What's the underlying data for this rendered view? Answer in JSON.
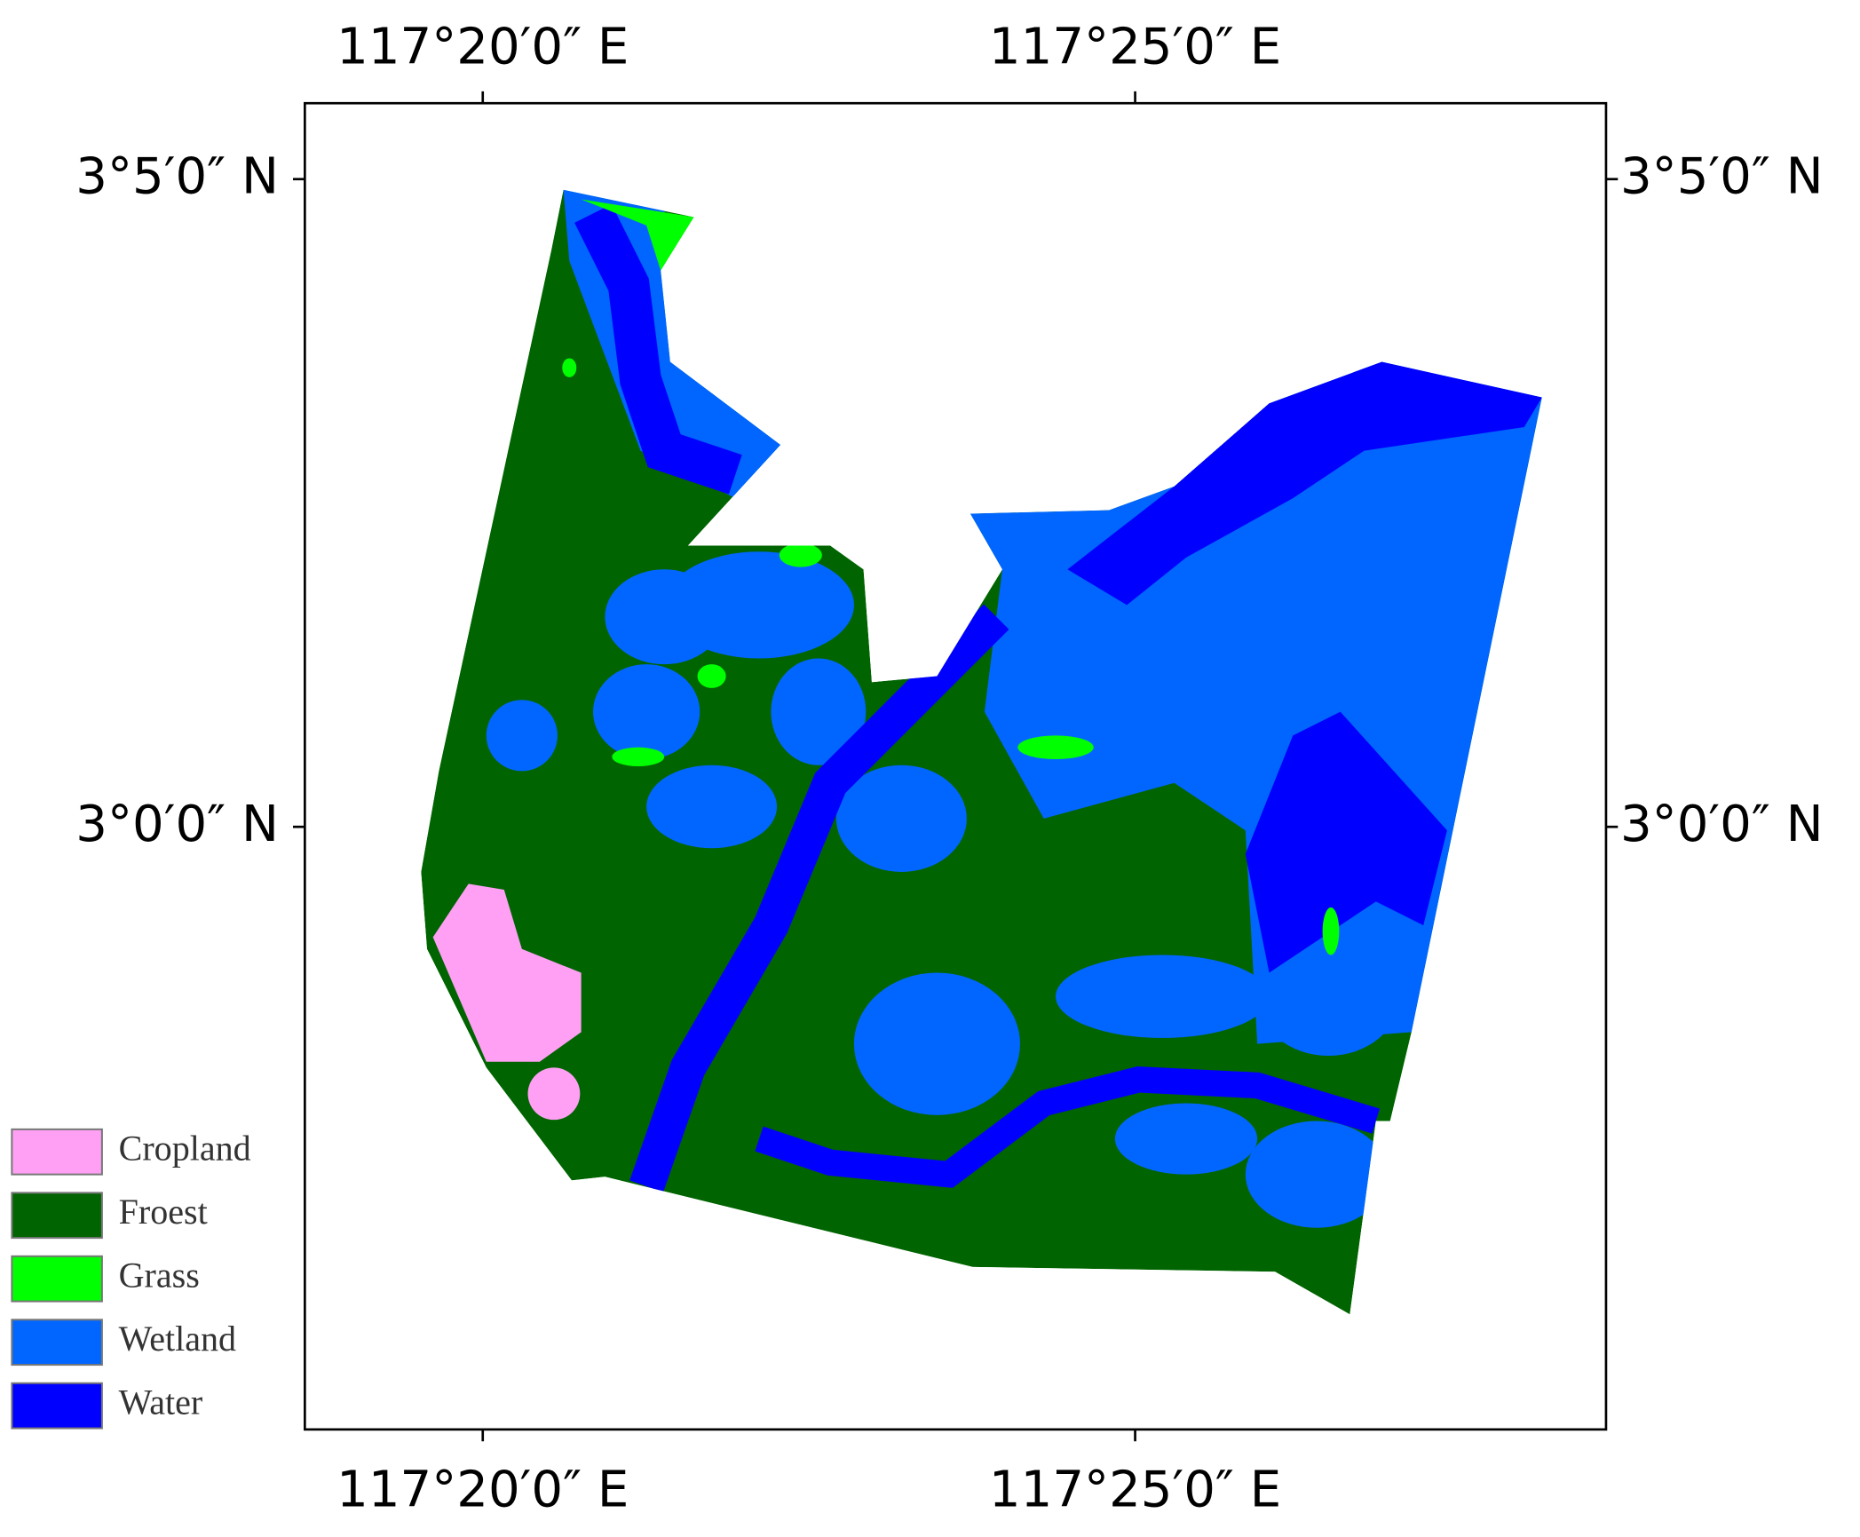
{
  "map": {
    "x_ticks_top": [
      "117°20′0″ E",
      "117°25′0″ E"
    ],
    "x_ticks_bottom": [
      "117°20′0″ E",
      "117°25′0″ E"
    ],
    "y_ticks_left": [
      "3°5′0″ N",
      "3°0′0″ N"
    ],
    "y_ticks_right": [
      "3°5′0″ N",
      "3°0′0″ N"
    ],
    "legend": [
      {
        "label": "Cropland",
        "color": "#ffa0f5"
      },
      {
        "label": "Froest",
        "color": "#006400"
      },
      {
        "label": "Grass",
        "color": "#00ff00"
      },
      {
        "label": "Wetland",
        "color": "#0066ff"
      },
      {
        "label": "Water",
        "color": "#0000ff"
      }
    ]
  }
}
